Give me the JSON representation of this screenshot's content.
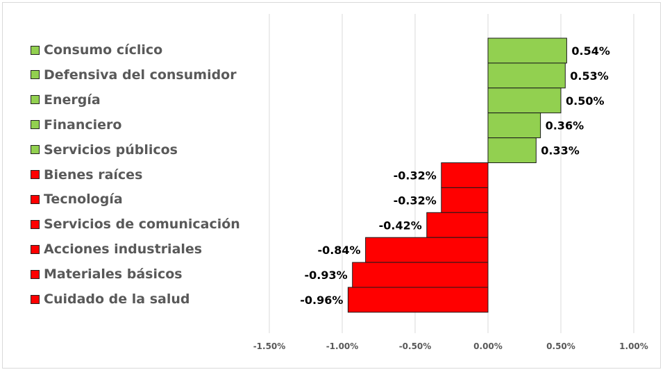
{
  "colors": {
    "positive": "#92d050",
    "negative": "#ff0000",
    "grid": "#d9d9d9",
    "label": "#595959",
    "value_label": "#000000"
  },
  "chart_data": {
    "type": "bar",
    "orientation": "horizontal",
    "title": "",
    "xlabel": "",
    "ylabel": "",
    "xlim": [
      -0.015,
      0.01
    ],
    "x_ticks": [
      -0.015,
      -0.01,
      -0.005,
      0,
      0.005,
      0.01
    ],
    "x_tick_labels": [
      "-1.50%",
      "-1.00%",
      "-0.50%",
      "0.00%",
      "0.50%",
      "1.00%"
    ],
    "grid": "vertical",
    "legend_position": "left",
    "categories": [
      "Consumo cíclico",
      "Defensiva del consumidor",
      "Energía",
      "Financiero",
      "Servicios públicos",
      "Bienes raíces",
      "Tecnología",
      "Servicios de comunicación",
      "Acciones industriales",
      "Materiales básicos",
      "Cuidado de la salud"
    ],
    "values": [
      0.0054,
      0.0053,
      0.005,
      0.0036,
      0.0033,
      -0.0032,
      -0.0032,
      -0.0042,
      -0.0084,
      -0.0093,
      -0.0096
    ],
    "value_labels": [
      "0.54%",
      "0.53%",
      "0.50%",
      "0.36%",
      "0.33%",
      "-0.32%",
      "-0.32%",
      "-0.42%",
      "-0.84%",
      "-0.93%",
      "-0.96%"
    ]
  }
}
